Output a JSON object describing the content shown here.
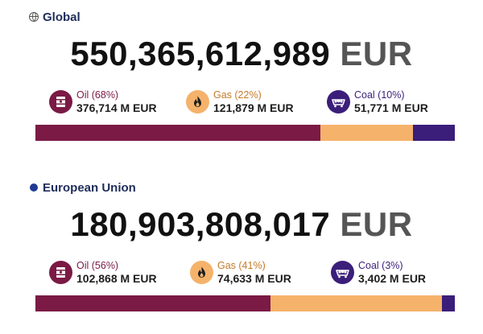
{
  "colors": {
    "oil": "#7a1a45",
    "gas": "#f5b26b",
    "coal": "#3b1e7a"
  },
  "icons": {
    "global": "globe-icon",
    "eu": "dot-icon",
    "oil": "oil-barrel-icon",
    "gas": "flame-icon",
    "coal": "coal-cart-icon"
  },
  "global": {
    "label": "Global",
    "total_number": "550,365,612,989",
    "currency": "EUR",
    "fuels": {
      "oil": {
        "label": "Oil (68%)",
        "value": "376,714 M EUR",
        "share": 68
      },
      "gas": {
        "label": "Gas (22%)",
        "value": "121,879 M EUR",
        "share": 22
      },
      "coal": {
        "label": "Coal (10%)",
        "value": "51,771 M EUR",
        "share": 10
      }
    }
  },
  "eu": {
    "label": "European Union",
    "total_number": "180,903,808,017",
    "currency": "EUR",
    "fuels": {
      "oil": {
        "label": "Oil (56%)",
        "value": "102,868 M EUR",
        "share": 56
      },
      "gas": {
        "label": "Gas (41%)",
        "value": "74,633 M EUR",
        "share": 41
      },
      "coal": {
        "label": "Coal (3%)",
        "value": "3,402 M EUR",
        "share": 3
      }
    }
  }
}
